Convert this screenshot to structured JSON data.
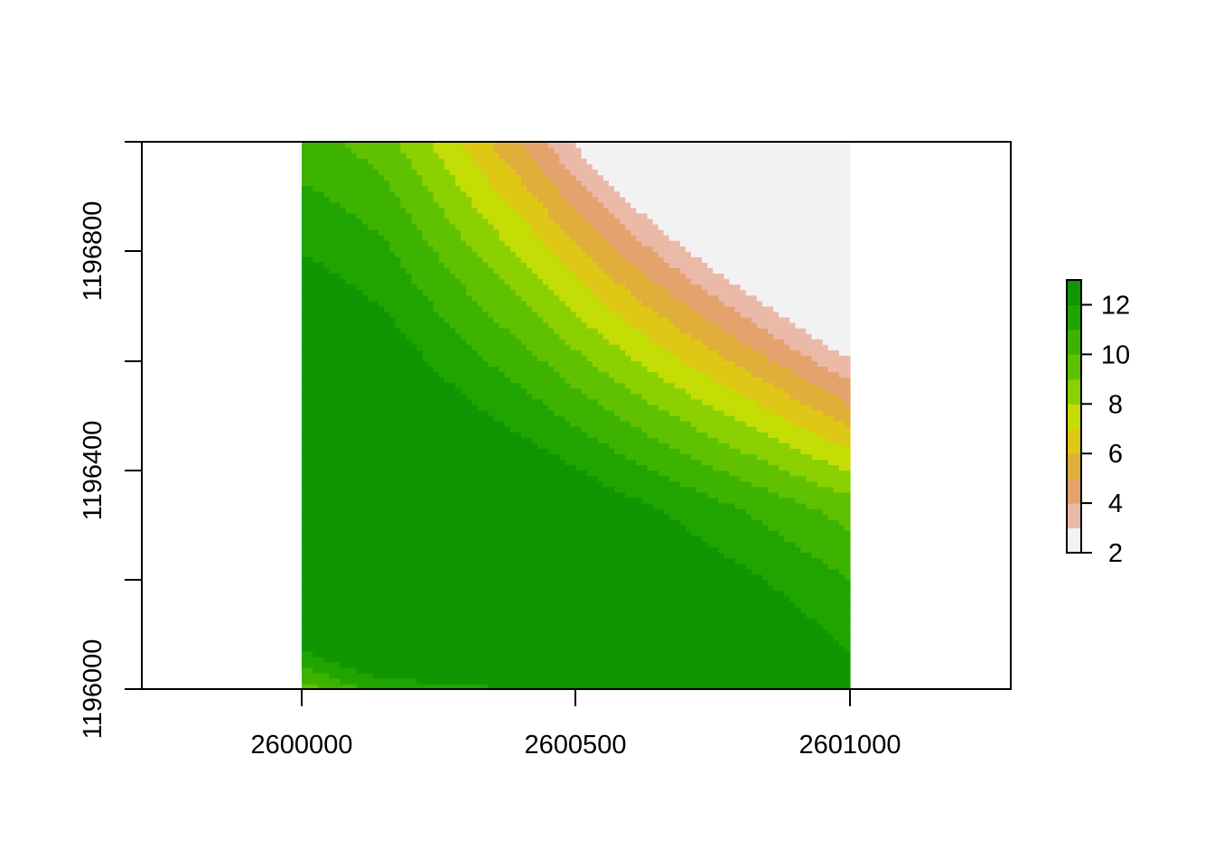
{
  "chart_data": {
    "type": "heatmap",
    "title": "",
    "xlabel": "",
    "ylabel": "",
    "x_range": [
      2600000,
      2601000
    ],
    "y_range": [
      1196000,
      1197000
    ],
    "xlim": [
      1999707,
      2601292
    ],
    "ylim": [
      1196000,
      1197000
    ],
    "x_ticks": [
      2600000,
      2600500,
      2601000
    ],
    "x_tick_labels": [
      "2600000",
      "2600500",
      "2601000"
    ],
    "y_ticks": [
      1196000,
      1196200,
      1196400,
      1196600,
      1196800
    ],
    "y_tick_labels": [
      "1196000",
      "",
      "1196400",
      "",
      "1196800"
    ],
    "value_range": [
      2,
      13
    ],
    "color_scale": [
      "#f2f2f2",
      "#ebb9a8",
      "#e4a26c",
      "#e0af3a",
      "#dfc715",
      "#c3dd05",
      "#8bd000",
      "#5fc100",
      "#3db300",
      "#20a400",
      "#0f9600"
    ],
    "color_breaks": [
      2,
      3,
      4,
      5,
      6,
      7,
      8,
      9,
      10,
      11,
      12,
      13
    ],
    "legend": {
      "position": "right",
      "ticks": [
        2,
        4,
        6,
        8,
        10,
        12
      ],
      "tick_labels": [
        "2",
        "4",
        "6",
        "8",
        "10",
        "12"
      ]
    },
    "surface_description": "Value is lowest (~2) at the top-right corner and rises toward the lower-left, peaking (~12.5) around x=2600200–2600500, y≈1196250; it falls back to ~8 along the bottom-left edge.",
    "grid": false
  }
}
